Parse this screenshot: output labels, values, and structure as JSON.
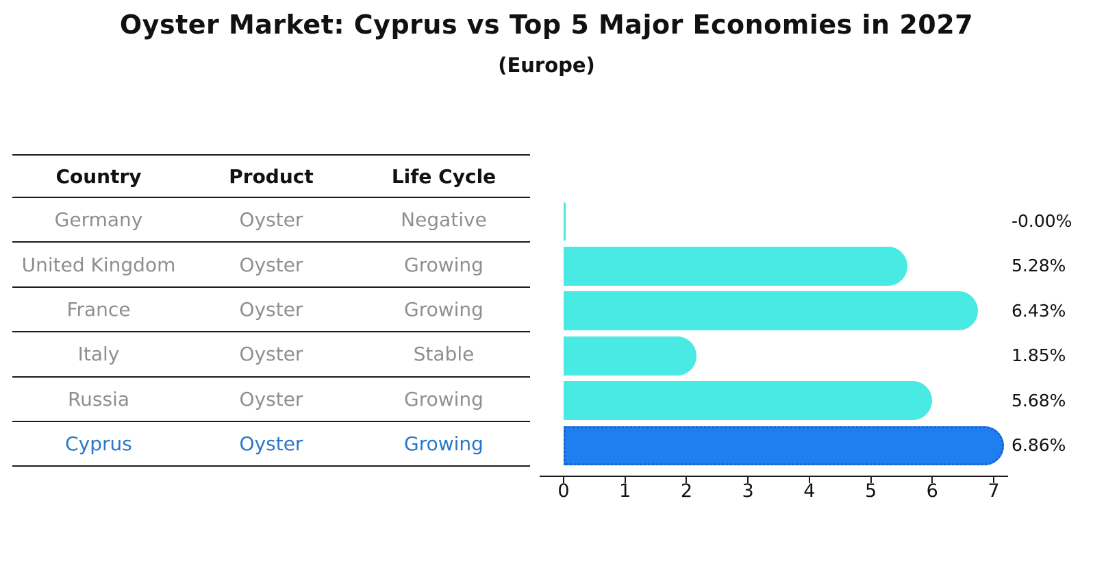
{
  "title": "Oyster Market: Cyprus vs Top 5 Major Economies in 2027",
  "subtitle": "(Europe)",
  "table": {
    "headers": [
      "Country",
      "Product",
      "Life Cycle"
    ],
    "rows": [
      {
        "country": "Germany",
        "product": "Oyster",
        "life_cycle": "Negative",
        "highlighted": false
      },
      {
        "country": "United Kingdom",
        "product": "Oyster",
        "life_cycle": "Growing",
        "highlighted": false
      },
      {
        "country": "France",
        "product": "Oyster",
        "life_cycle": "Growing",
        "highlighted": false
      },
      {
        "country": "Italy",
        "product": "Oyster",
        "life_cycle": "Stable",
        "highlighted": false
      },
      {
        "country": "Russia",
        "product": "Oyster",
        "life_cycle": "Growing",
        "highlighted": false
      },
      {
        "country": "Cyprus",
        "product": "Oyster",
        "life_cycle": "Growing",
        "highlighted": true
      }
    ]
  },
  "chart_data": {
    "type": "bar",
    "orientation": "horizontal",
    "title": "Oyster Market: Cyprus vs Top 5 Major Economies in 2027",
    "subtitle": "(Europe)",
    "categories": [
      "Germany",
      "United Kingdom",
      "France",
      "Italy",
      "Russia",
      "Cyprus"
    ],
    "values": [
      -0.0,
      5.28,
      6.43,
      1.85,
      5.68,
      6.86
    ],
    "value_labels": [
      "-0.00%",
      "5.28%",
      "6.43%",
      "1.85%",
      "5.68%",
      "6.86%"
    ],
    "unit": "percent",
    "xticks": [
      "0",
      "1",
      "2",
      "3",
      "4",
      "5",
      "6",
      "7"
    ],
    "xlim": [
      -0.4,
      7.25
    ],
    "grid": false,
    "legend": false,
    "highlight_index": 5
  },
  "colors": {
    "background": "#ffffff",
    "bar_cyan": "#49e9e4",
    "bar_blue": "#1f7ef0",
    "bar_blue_edge": "#1b63c6",
    "highlight_text": "#2878c8",
    "row_text": "#8f8f8f",
    "header_text": "#111111",
    "axis": "#1a1a1a"
  }
}
